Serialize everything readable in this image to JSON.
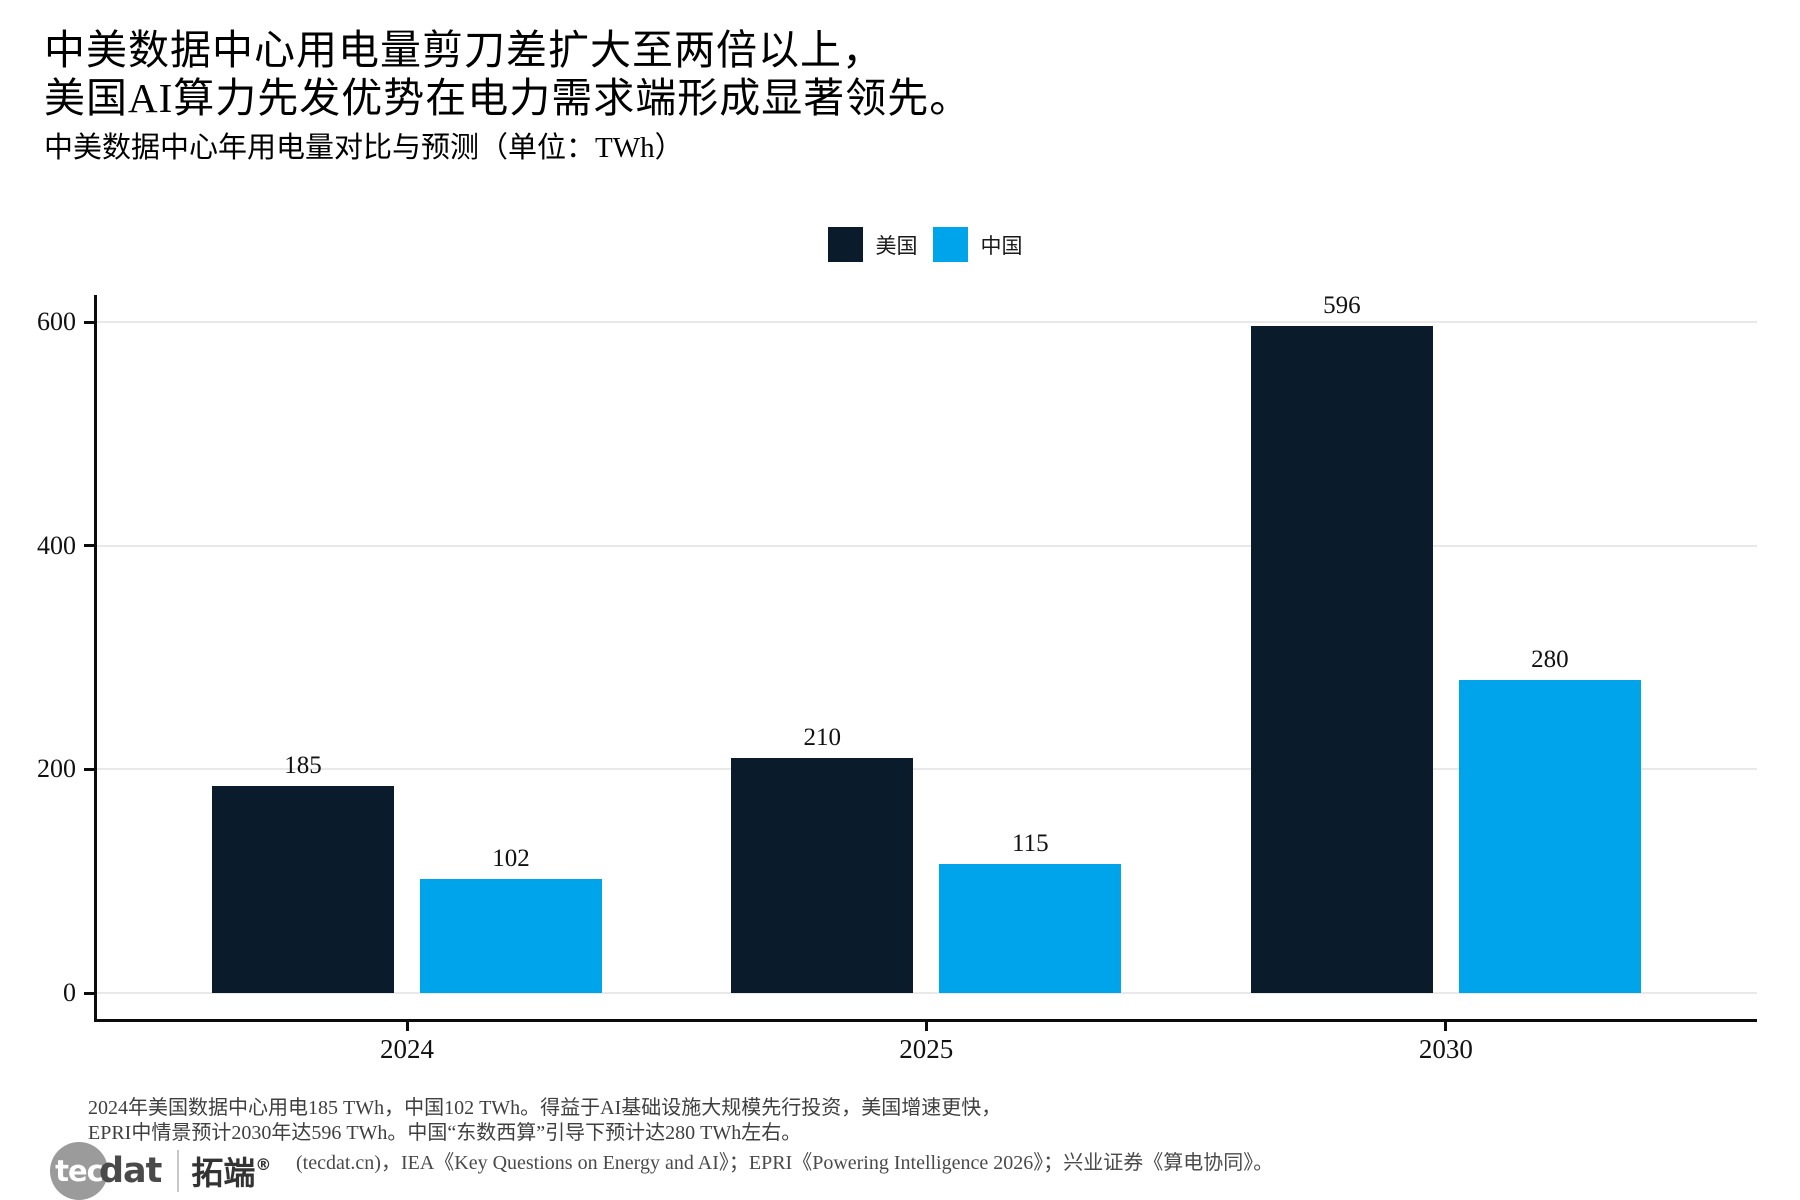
{
  "header": {
    "title_line1": "中美数据中心用电量剪刀差扩大至两倍以上，",
    "title_line2": "美国AI算力先发优势在电力需求端形成显著领先。",
    "subtitle": "中美数据中心年用电量对比与预测（单位：TWh）"
  },
  "chart_data": {
    "type": "bar",
    "title": "中美数据中心年用电量对比与预测（单位：TWh）",
    "xlabel": "",
    "ylabel": "",
    "unit": "TWh",
    "categories": [
      "2024",
      "2025",
      "2030"
    ],
    "series": [
      {
        "key": "us",
        "name": "美国",
        "color": "#0a1b2b",
        "values": [
          185,
          210,
          596
        ]
      },
      {
        "key": "cn",
        "name": "中国",
        "color": "#00a4ea",
        "values": [
          102,
          115,
          280
        ]
      }
    ],
    "yticks": [
      0,
      200,
      400,
      600
    ],
    "ylim": [
      0,
      650
    ],
    "grid": "horizontal-light-gray",
    "legend_position": "top-center",
    "bar_labels": true
  },
  "footnote": {
    "line1": "2024年美国数据中心用电185 TWh，中国102 TWh。得益于AI基础设施大规模先行投资，美国增速更快，",
    "line2": "EPRI中情景预计2030年达596 TWh。中国“东数西算”引导下预计达280 TWh左右。",
    "source": "(tecdat.cn)，IEA《Key Questions on Energy and AI》；EPRI《Powering Intelligence 2026》；兴业证券《算电协同》。"
  },
  "logo": {
    "circle_text": "tec",
    "suffix": "dat",
    "cn_name": "拓端",
    "registered": "®"
  },
  "colors": {
    "us_bar": "#0a1b2b",
    "cn_bar": "#00a4ea",
    "gridline": "#e9e9e9",
    "axis": "#0c0c0c",
    "footnote_text": "#3f3f3f",
    "background": "#ffffff"
  }
}
